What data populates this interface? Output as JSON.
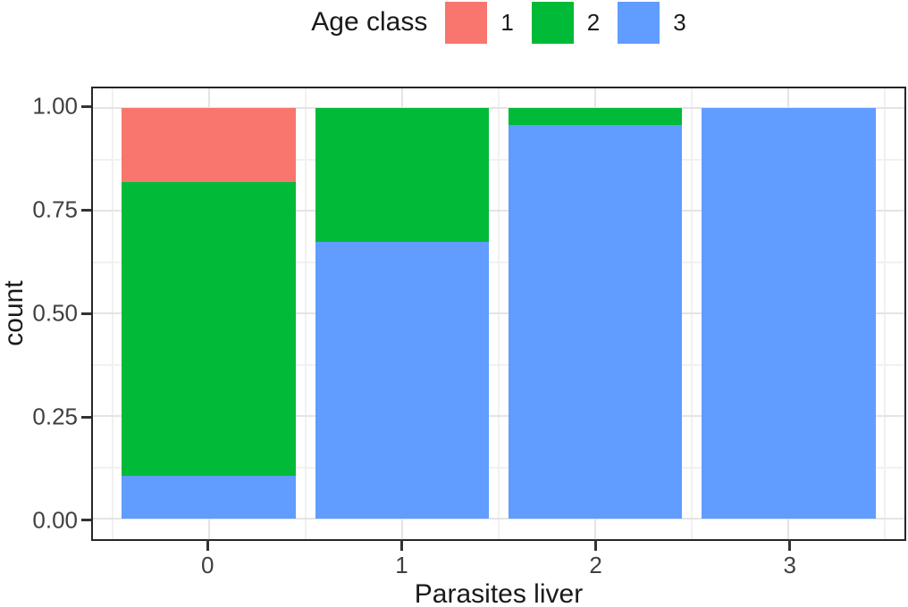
{
  "chart_data": {
    "type": "bar",
    "stacked": true,
    "normalized": true,
    "title": "",
    "xlabel": "Parasites liver",
    "ylabel": "count",
    "categories": [
      "0",
      "1",
      "2",
      "3"
    ],
    "series": [
      {
        "name": "1",
        "color": "#F8766D",
        "values": [
          0.18,
          0.0,
          0.0,
          0.0
        ]
      },
      {
        "name": "2",
        "color": "#00BA38",
        "values": [
          0.715,
          0.325,
          0.04,
          0.0
        ]
      },
      {
        "name": "3",
        "color": "#619CFF",
        "values": [
          0.105,
          0.675,
          0.96,
          1.0
        ]
      }
    ],
    "ylim": [
      0,
      1
    ],
    "y_ticks": [
      {
        "v": 0.0,
        "label": "0.00"
      },
      {
        "v": 0.25,
        "label": "0.25"
      },
      {
        "v": 0.5,
        "label": "0.50"
      },
      {
        "v": 0.75,
        "label": "0.75"
      },
      {
        "v": 1.0,
        "label": "1.00"
      }
    ],
    "y_minor": [
      0.125,
      0.375,
      0.625,
      0.875
    ],
    "grid": "major+minor",
    "grid_color_major": "#E4E4E4",
    "grid_color_minor": "#F1F1F1",
    "panel_border_color": "#262626",
    "legend": {
      "title": "Age class",
      "position": "top"
    }
  }
}
